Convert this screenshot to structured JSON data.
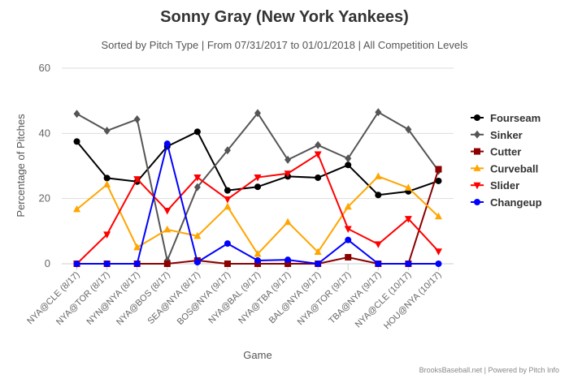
{
  "chart_data": {
    "type": "line",
    "title": "Sonny Gray (New York Yankees)",
    "subtitle": "Sorted by Pitch Type | From 07/31/2017 to 01/01/2018 | All Competition Levels",
    "xlabel": "Game",
    "ylabel": "Percentage of Pitches",
    "ylim": [
      0,
      60
    ],
    "yticks": [
      0,
      20,
      40,
      60
    ],
    "grid": true,
    "legend_position": "right",
    "categories": [
      "NYA@CLE (8/17)",
      "NYA@TOR (8/17)",
      "NYN@NYA (8/17)",
      "NYA@BOS (8/17)",
      "SEA@NYA (8/17)",
      "BOS@NYA (9/17)",
      "NYA@BAL (9/17)",
      "NYA@TBA (9/17)",
      "BAL@NYA (9/17)",
      "NYA@TOR (9/17)",
      "TBA@NYA (9/17)",
      "NYA@CLE (10/17)",
      "HOU@NYA (10/17)"
    ],
    "series": [
      {
        "name": "Fourseam",
        "color": "#000000",
        "marker": "circle",
        "values": [
          37.5,
          26.3,
          25.2,
          36.0,
          40.5,
          22.5,
          23.6,
          26.8,
          26.4,
          30.3,
          21.1,
          22.2,
          25.4
        ]
      },
      {
        "name": "Sinker",
        "color": "#555555",
        "marker": "diamond",
        "values": [
          46.0,
          40.8,
          44.3,
          1.0,
          23.5,
          34.8,
          46.2,
          31.9,
          36.4,
          32.3,
          46.5,
          41.2,
          28.5
        ]
      },
      {
        "name": "Cutter",
        "color": "#8b0000",
        "marker": "square",
        "values": [
          0,
          0,
          0,
          0,
          1.0,
          0,
          0,
          0,
          0,
          2.0,
          0,
          0,
          29.0
        ]
      },
      {
        "name": "Curveball",
        "color": "#ffa500",
        "marker": "triangle",
        "values": [
          16.7,
          24.3,
          5.0,
          10.5,
          8.5,
          17.5,
          3.0,
          12.8,
          3.6,
          17.5,
          26.8,
          23.3,
          14.5
        ]
      },
      {
        "name": "Slider",
        "color": "#ff0000",
        "marker": "triangle-down",
        "values": [
          0,
          9.0,
          26.0,
          16.3,
          26.5,
          19.8,
          26.5,
          27.7,
          33.6,
          10.7,
          6.0,
          13.8,
          3.8
        ]
      },
      {
        "name": "Changeup",
        "color": "#0000ff",
        "marker": "circle",
        "values": [
          0,
          0,
          0,
          36.8,
          0.5,
          6.2,
          1.0,
          1.2,
          0,
          7.3,
          0,
          0,
          0
        ]
      }
    ],
    "credits": "BrooksBaseball.net | Powered by Pitch Info"
  }
}
